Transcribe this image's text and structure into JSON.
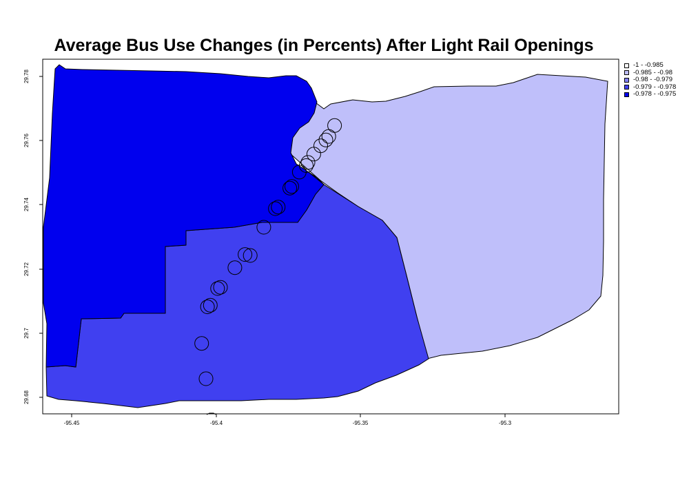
{
  "title": "Average Bus Use Changes (in Percents) After Light Rail Openings",
  "axes": {
    "x_ticks": [
      "-95.45",
      "-95.4",
      "-95.35",
      "-95.3"
    ],
    "y_ticks": [
      "29.68",
      "29.7",
      "29.72",
      "29.74",
      "29.76",
      "29.78"
    ]
  },
  "legend": [
    {
      "label": "-1 - -0.985",
      "color": "#ffffff"
    },
    {
      "label": "-0.985 - -0.98",
      "color": "#bfbffa"
    },
    {
      "label": "-0.98 - -0.979",
      "color": "#8080f5"
    },
    {
      "label": "-0.979 - -0.978",
      "color": "#4040f0"
    },
    {
      "label": "-0.978 - -0.975",
      "color": "#0000ee"
    }
  ],
  "regions": [
    {
      "name": "northwest",
      "class": "-0.978 - -0.975",
      "color": "#0000ee"
    },
    {
      "name": "south",
      "class": "-0.979 - -0.978",
      "color": "#4040f0"
    },
    {
      "name": "east",
      "class": "-0.985 - -0.98",
      "color": "#bfbffa"
    }
  ],
  "stations": [
    {
      "lon": -95.359,
      "lat": 29.7647
    },
    {
      "lon": -95.361,
      "lat": 29.7613
    },
    {
      "lon": -95.362,
      "lat": 29.7602
    },
    {
      "lon": -95.3638,
      "lat": 29.7584
    },
    {
      "lon": -95.3662,
      "lat": 29.7558
    },
    {
      "lon": -95.3682,
      "lat": 29.7532
    },
    {
      "lon": -95.3688,
      "lat": 29.7522
    },
    {
      "lon": -95.3712,
      "lat": 29.7502
    },
    {
      "lon": -95.3738,
      "lat": 29.7457
    },
    {
      "lon": -95.3745,
      "lat": 29.7452
    },
    {
      "lon": -95.3785,
      "lat": 29.7393
    },
    {
      "lon": -95.3795,
      "lat": 29.7388
    },
    {
      "lon": -95.3835,
      "lat": 29.733
    },
    {
      "lon": -95.3882,
      "lat": 29.7242
    },
    {
      "lon": -95.39,
      "lat": 29.7245
    },
    {
      "lon": -95.3935,
      "lat": 29.7204
    },
    {
      "lon": -95.3985,
      "lat": 29.7143
    },
    {
      "lon": -95.3995,
      "lat": 29.7139
    },
    {
      "lon": -95.402,
      "lat": 29.7087
    },
    {
      "lon": -95.403,
      "lat": 29.7082
    },
    {
      "lon": -95.405,
      "lat": 29.6968
    },
    {
      "lon": -95.4035,
      "lat": 29.6858
    }
  ]
}
